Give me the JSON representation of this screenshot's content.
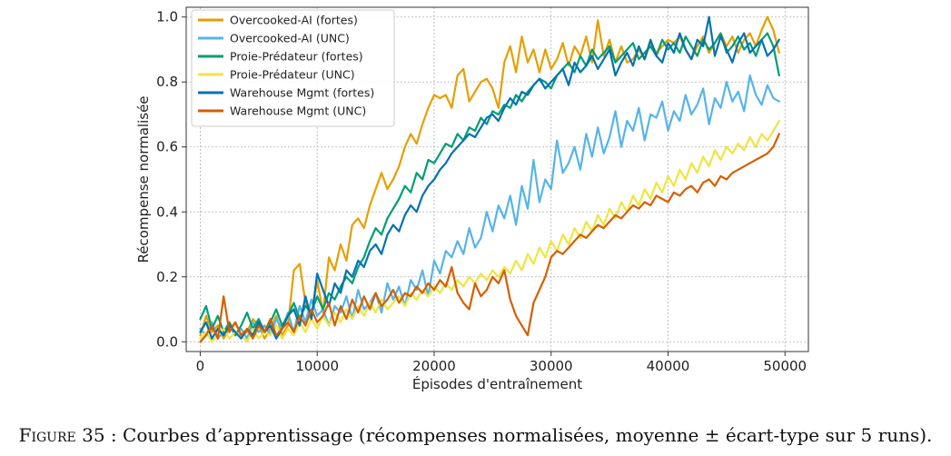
{
  "chart_data": {
    "type": "line",
    "xlabel": "Épisodes d'entraînement",
    "ylabel": "Récompense normalisée",
    "xlim": [
      -1200,
      52000
    ],
    "ylim": [
      -0.03,
      1.03
    ],
    "xticks": [
      0,
      10000,
      20000,
      30000,
      40000,
      50000
    ],
    "yticks": [
      0.0,
      0.2,
      0.4,
      0.6,
      0.8,
      1.0
    ],
    "ytick_labels": [
      "0.0",
      "0.2",
      "0.4",
      "0.6",
      "0.8",
      "1.0"
    ],
    "grid": true,
    "legend_position": "top-left",
    "x": [
      0,
      500,
      1000,
      1500,
      2000,
      2500,
      3000,
      3500,
      4000,
      4500,
      5000,
      5500,
      6000,
      6500,
      7000,
      7500,
      8000,
      8500,
      9000,
      9500,
      10000,
      10500,
      11000,
      11500,
      12000,
      12500,
      13000,
      13500,
      14000,
      14500,
      15000,
      15500,
      16000,
      16500,
      17000,
      17500,
      18000,
      18500,
      19000,
      19500,
      20000,
      20500,
      21000,
      21500,
      22000,
      22500,
      23000,
      23500,
      24000,
      24500,
      25000,
      25500,
      26000,
      26500,
      27000,
      27500,
      28000,
      28500,
      29000,
      29500,
      30000,
      30500,
      31000,
      31500,
      32000,
      32500,
      33000,
      33500,
      34000,
      34500,
      35000,
      35500,
      36000,
      36500,
      37000,
      37500,
      38000,
      38500,
      39000,
      39500,
      40000,
      40500,
      41000,
      41500,
      42000,
      42500,
      43000,
      43500,
      44000,
      44500,
      45000,
      45500,
      46000,
      46500,
      47000,
      47500,
      48000,
      48500,
      49000,
      49500
    ],
    "series": [
      {
        "name": "Overcooked-AI (fortes)",
        "color": "#E69F00",
        "values": [
          0.02,
          0.08,
          0.03,
          0.05,
          0.01,
          0.04,
          0.06,
          0.02,
          0.03,
          0.07,
          0.05,
          0.01,
          0.04,
          0.08,
          0.02,
          0.05,
          0.22,
          0.24,
          0.12,
          0.07,
          0.19,
          0.09,
          0.26,
          0.22,
          0.3,
          0.25,
          0.36,
          0.38,
          0.35,
          0.42,
          0.47,
          0.52,
          0.47,
          0.5,
          0.54,
          0.6,
          0.64,
          0.61,
          0.67,
          0.72,
          0.76,
          0.75,
          0.76,
          0.72,
          0.82,
          0.84,
          0.74,
          0.77,
          0.8,
          0.81,
          0.78,
          0.72,
          0.86,
          0.91,
          0.83,
          0.94,
          0.86,
          0.9,
          0.83,
          0.9,
          0.84,
          0.87,
          0.92,
          0.85,
          0.91,
          0.88,
          0.94,
          0.86,
          0.99,
          0.88,
          0.93,
          0.86,
          0.91,
          0.86,
          0.87,
          0.9,
          0.87,
          0.92,
          0.89,
          0.91,
          0.93,
          0.92,
          0.94,
          0.9,
          0.87,
          0.91,
          0.94,
          0.89,
          0.92,
          0.95,
          0.91,
          0.94,
          0.89,
          0.93,
          0.95,
          0.91,
          0.96,
          1.0,
          0.96,
          0.89
        ]
      },
      {
        "name": "Overcooked-AI (UNC)",
        "color": "#56B4E9",
        "values": [
          0.04,
          0.02,
          0.06,
          0.01,
          0.03,
          0.05,
          0.02,
          0.04,
          0.01,
          0.06,
          0.03,
          0.05,
          0.02,
          0.07,
          0.04,
          0.09,
          0.03,
          0.11,
          0.06,
          0.13,
          0.08,
          0.1,
          0.05,
          0.11,
          0.09,
          0.14,
          0.07,
          0.16,
          0.1,
          0.12,
          0.15,
          0.09,
          0.18,
          0.13,
          0.17,
          0.11,
          0.19,
          0.16,
          0.22,
          0.14,
          0.25,
          0.21,
          0.28,
          0.26,
          0.31,
          0.27,
          0.35,
          0.29,
          0.32,
          0.4,
          0.34,
          0.42,
          0.38,
          0.45,
          0.36,
          0.48,
          0.41,
          0.56,
          0.43,
          0.5,
          0.47,
          0.62,
          0.52,
          0.55,
          0.6,
          0.53,
          0.64,
          0.57,
          0.66,
          0.58,
          0.63,
          0.71,
          0.6,
          0.68,
          0.65,
          0.72,
          0.62,
          0.7,
          0.69,
          0.74,
          0.65,
          0.71,
          0.68,
          0.76,
          0.7,
          0.73,
          0.78,
          0.67,
          0.75,
          0.72,
          0.8,
          0.74,
          0.77,
          0.71,
          0.82,
          0.76,
          0.73,
          0.79,
          0.75,
          0.74
        ]
      },
      {
        "name": "Proie-Prédateur (fortes)",
        "color": "#009E73",
        "values": [
          0.07,
          0.11,
          0.04,
          0.08,
          0.03,
          0.06,
          0.02,
          0.05,
          0.09,
          0.04,
          0.07,
          0.03,
          0.06,
          0.1,
          0.05,
          0.08,
          0.12,
          0.07,
          0.11,
          0.09,
          0.14,
          0.1,
          0.15,
          0.13,
          0.17,
          0.2,
          0.18,
          0.23,
          0.26,
          0.31,
          0.35,
          0.33,
          0.38,
          0.41,
          0.44,
          0.48,
          0.46,
          0.52,
          0.5,
          0.56,
          0.55,
          0.58,
          0.61,
          0.6,
          0.64,
          0.62,
          0.66,
          0.65,
          0.69,
          0.67,
          0.71,
          0.7,
          0.73,
          0.72,
          0.76,
          0.74,
          0.77,
          0.79,
          0.81,
          0.8,
          0.78,
          0.82,
          0.84,
          0.86,
          0.83,
          0.88,
          0.85,
          0.9,
          0.87,
          0.89,
          0.91,
          0.86,
          0.88,
          0.9,
          0.92,
          0.87,
          0.89,
          0.91,
          0.88,
          0.93,
          0.9,
          0.92,
          0.89,
          0.94,
          0.91,
          0.88,
          0.93,
          0.9,
          0.92,
          0.95,
          0.89,
          0.91,
          0.94,
          0.9,
          0.92,
          0.88,
          0.93,
          0.95,
          0.91,
          0.82
        ]
      },
      {
        "name": "Proie-Prédateur (UNC)",
        "color": "#F0E442",
        "values": [
          0.01,
          0.03,
          0.0,
          0.02,
          0.04,
          0.01,
          0.03,
          0.02,
          0.0,
          0.04,
          0.01,
          0.03,
          0.02,
          0.05,
          0.01,
          0.04,
          0.02,
          0.06,
          0.03,
          0.07,
          0.04,
          0.08,
          0.05,
          0.09,
          0.06,
          0.1,
          0.07,
          0.11,
          0.08,
          0.12,
          0.09,
          0.13,
          0.1,
          0.12,
          0.14,
          0.11,
          0.15,
          0.13,
          0.16,
          0.14,
          0.17,
          0.15,
          0.18,
          0.16,
          0.19,
          0.17,
          0.2,
          0.18,
          0.21,
          0.19,
          0.22,
          0.2,
          0.23,
          0.21,
          0.25,
          0.22,
          0.27,
          0.24,
          0.29,
          0.26,
          0.31,
          0.28,
          0.33,
          0.3,
          0.35,
          0.32,
          0.37,
          0.34,
          0.39,
          0.36,
          0.41,
          0.38,
          0.43,
          0.4,
          0.45,
          0.42,
          0.47,
          0.44,
          0.49,
          0.46,
          0.51,
          0.48,
          0.53,
          0.5,
          0.55,
          0.52,
          0.57,
          0.54,
          0.59,
          0.56,
          0.6,
          0.58,
          0.61,
          0.59,
          0.63,
          0.6,
          0.64,
          0.62,
          0.65,
          0.68
        ]
      },
      {
        "name": "Warehouse Mgmt (fortes)",
        "color": "#0072B2",
        "values": [
          0.03,
          0.06,
          0.01,
          0.04,
          0.02,
          0.05,
          0.03,
          0.01,
          0.04,
          0.02,
          0.06,
          0.03,
          0.05,
          0.01,
          0.04,
          0.08,
          0.1,
          0.05,
          0.14,
          0.07,
          0.21,
          0.16,
          0.11,
          0.18,
          0.15,
          0.22,
          0.2,
          0.25,
          0.23,
          0.28,
          0.3,
          0.27,
          0.33,
          0.36,
          0.34,
          0.39,
          0.42,
          0.4,
          0.45,
          0.48,
          0.5,
          0.53,
          0.55,
          0.58,
          0.6,
          0.62,
          0.64,
          0.63,
          0.66,
          0.69,
          0.7,
          0.68,
          0.72,
          0.75,
          0.73,
          0.77,
          0.76,
          0.79,
          0.81,
          0.78,
          0.8,
          0.82,
          0.84,
          0.79,
          0.86,
          0.83,
          0.85,
          0.88,
          0.84,
          0.87,
          0.9,
          0.82,
          0.86,
          0.89,
          0.85,
          0.91,
          0.87,
          0.93,
          0.88,
          0.86,
          0.92,
          0.89,
          0.95,
          0.9,
          0.87,
          0.93,
          0.91,
          1.0,
          0.88,
          0.94,
          0.9,
          0.86,
          0.92,
          0.95,
          0.89,
          0.91,
          0.93,
          0.88,
          0.9,
          0.93
        ]
      },
      {
        "name": "Warehouse Mgmt (UNC)",
        "color": "#D55E00",
        "values": [
          0.0,
          0.02,
          0.05,
          0.01,
          0.14,
          0.03,
          0.06,
          0.02,
          0.04,
          0.01,
          0.05,
          0.03,
          0.07,
          0.02,
          0.04,
          0.06,
          0.03,
          0.08,
          0.05,
          0.1,
          0.06,
          0.08,
          0.12,
          0.05,
          0.11,
          0.07,
          0.13,
          0.09,
          0.14,
          0.1,
          0.15,
          0.11,
          0.13,
          0.16,
          0.12,
          0.15,
          0.14,
          0.17,
          0.15,
          0.18,
          0.16,
          0.19,
          0.17,
          0.23,
          0.15,
          0.12,
          0.1,
          0.18,
          0.14,
          0.16,
          0.2,
          0.18,
          0.22,
          0.13,
          0.08,
          0.05,
          0.02,
          0.12,
          0.16,
          0.2,
          0.26,
          0.28,
          0.27,
          0.29,
          0.31,
          0.33,
          0.32,
          0.34,
          0.36,
          0.35,
          0.37,
          0.39,
          0.38,
          0.4,
          0.42,
          0.41,
          0.43,
          0.42,
          0.45,
          0.44,
          0.43,
          0.46,
          0.45,
          0.47,
          0.48,
          0.46,
          0.49,
          0.5,
          0.48,
          0.51,
          0.5,
          0.52,
          0.53,
          0.54,
          0.55,
          0.56,
          0.57,
          0.58,
          0.6,
          0.64
        ]
      }
    ]
  },
  "caption": {
    "label": "Figure 35 :",
    "text": " Courbes d’apprentissage (récompenses normalisées, moyenne ± écart-type sur 5 runs)."
  }
}
